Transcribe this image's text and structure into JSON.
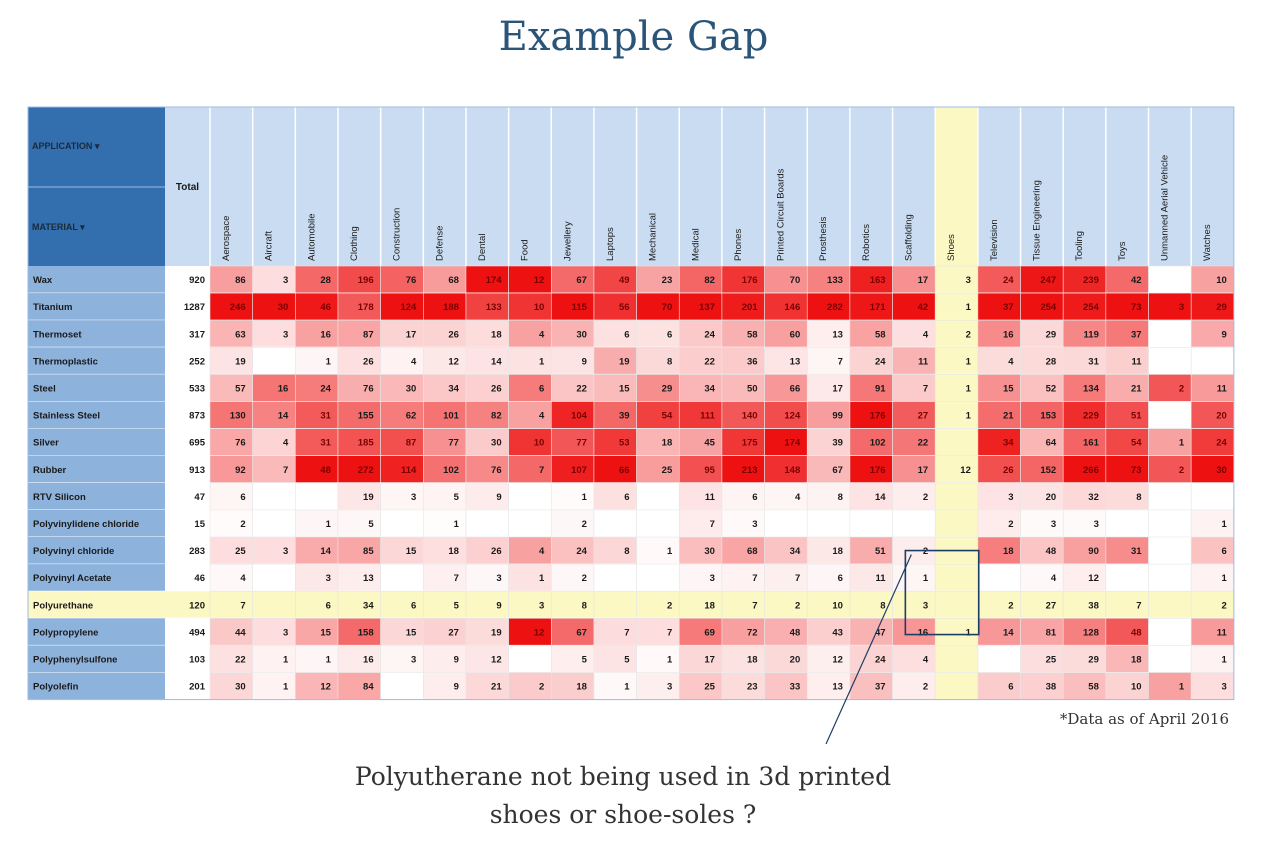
{
  "slide": {
    "title": "Example Gap",
    "footnote": "*Data as of April 2016",
    "callout_line1": "Polyutherane not being used in 3d printed",
    "callout_line2": "shoes or shoe-soles ?"
  },
  "colors": {
    "title": "#2b5578",
    "header_bg": "#c9dcf1",
    "row_label_bg": "#8db2dc",
    "corner_bg": "#336fae",
    "highlight": "#fbf8c4",
    "heat_low": "#ffffff",
    "heat_high": "#ee1111"
  },
  "chart_data": {
    "type": "heatmap",
    "corner_labels": [
      "APPLICATION ▾",
      "MATERIAL ▾"
    ],
    "total_label": "Total",
    "columns": [
      "Aerospace",
      "Aircraft",
      "Automobile",
      "Clothing",
      "Construction",
      "Defense",
      "Dental",
      "Food",
      "Jewellery",
      "Laptops",
      "Mechanical",
      "Medical",
      "Phones",
      "Printed Circuit Boards",
      "Prosthesis",
      "Robotics",
      "Scaffolding",
      "Shoes",
      "Television",
      "Tissue Engineering",
      "Tooling",
      "Toys",
      "Unmanned Aerial Vehicle",
      "Watches"
    ],
    "rows": [
      {
        "material": "Wax",
        "total": 920,
        "values": [
          86,
          3,
          28,
          196,
          76,
          68,
          174,
          12,
          67,
          49,
          23,
          82,
          176,
          70,
          133,
          163,
          17,
          3,
          24,
          247,
          239,
          42,
          null,
          10
        ]
      },
      {
        "material": "Titanium",
        "total": 1287,
        "values": [
          246,
          30,
          46,
          178,
          124,
          188,
          133,
          10,
          115,
          56,
          70,
          137,
          201,
          146,
          282,
          171,
          42,
          1,
          37,
          254,
          254,
          73,
          3,
          29
        ]
      },
      {
        "material": "Thermoset",
        "total": 317,
        "values": [
          63,
          3,
          16,
          87,
          17,
          26,
          18,
          4,
          30,
          6,
          6,
          24,
          58,
          60,
          13,
          58,
          4,
          2,
          16,
          29,
          119,
          37,
          null,
          9
        ]
      },
      {
        "material": "Thermoplastic",
        "total": 252,
        "values": [
          19,
          null,
          1,
          26,
          4,
          12,
          14,
          1,
          9,
          19,
          8,
          22,
          36,
          13,
          7,
          24,
          11,
          1,
          4,
          28,
          31,
          11,
          null,
          null
        ]
      },
      {
        "material": "Steel",
        "total": 533,
        "values": [
          57,
          16,
          24,
          76,
          30,
          34,
          26,
          6,
          22,
          15,
          29,
          34,
          50,
          66,
          17,
          91,
          7,
          1,
          15,
          52,
          134,
          21,
          2,
          11
        ]
      },
      {
        "material": "Stainless Steel",
        "total": 873,
        "values": [
          130,
          14,
          31,
          155,
          62,
          101,
          82,
          4,
          104,
          39,
          54,
          111,
          140,
          124,
          99,
          176,
          27,
          1,
          21,
          153,
          229,
          51,
          null,
          20
        ]
      },
      {
        "material": "Silver",
        "total": 695,
        "values": [
          76,
          4,
          31,
          185,
          87,
          77,
          30,
          10,
          77,
          53,
          18,
          45,
          175,
          174,
          39,
          102,
          22,
          null,
          34,
          64,
          161,
          54,
          1,
          24
        ]
      },
      {
        "material": "Rubber",
        "total": 913,
        "values": [
          92,
          7,
          48,
          272,
          114,
          102,
          76,
          7,
          107,
          66,
          25,
          95,
          213,
          148,
          67,
          176,
          17,
          12,
          26,
          152,
          266,
          73,
          2,
          30
        ]
      },
      {
        "material": "RTV Silicon",
        "total": 47,
        "values": [
          6,
          null,
          null,
          19,
          3,
          5,
          9,
          null,
          1,
          6,
          null,
          11,
          6,
          4,
          8,
          14,
          2,
          null,
          3,
          20,
          32,
          8,
          null,
          null
        ]
      },
      {
        "material": "Polyvinylidene chloride",
        "total": 15,
        "values": [
          2,
          null,
          1,
          5,
          null,
          1,
          null,
          null,
          2,
          null,
          null,
          7,
          3,
          null,
          null,
          null,
          null,
          null,
          2,
          3,
          3,
          null,
          null,
          1
        ]
      },
      {
        "material": "Polyvinyl chloride",
        "total": 283,
        "values": [
          25,
          3,
          14,
          85,
          15,
          18,
          26,
          4,
          24,
          8,
          1,
          30,
          68,
          34,
          18,
          51,
          2,
          null,
          18,
          48,
          90,
          31,
          null,
          6
        ]
      },
      {
        "material": "Polyvinyl Acetate",
        "total": 46,
        "values": [
          4,
          null,
          3,
          13,
          null,
          7,
          3,
          1,
          2,
          null,
          null,
          3,
          7,
          7,
          6,
          11,
          1,
          null,
          null,
          4,
          12,
          null,
          null,
          1
        ]
      },
      {
        "material": "Polyurethane",
        "total": 120,
        "values": [
          7,
          null,
          6,
          34,
          6,
          5,
          9,
          3,
          8,
          null,
          2,
          18,
          7,
          2,
          10,
          8,
          3,
          null,
          2,
          27,
          38,
          7,
          null,
          2
        ],
        "highlight": true
      },
      {
        "material": "Polypropylene",
        "total": 494,
        "values": [
          44,
          3,
          15,
          158,
          15,
          27,
          19,
          12,
          67,
          7,
          7,
          69,
          72,
          48,
          43,
          47,
          16,
          1,
          14,
          81,
          128,
          48,
          null,
          11
        ]
      },
      {
        "material": "Polyphenylsulfone",
        "total": 103,
        "values": [
          22,
          1,
          1,
          16,
          3,
          9,
          12,
          null,
          5,
          5,
          1,
          17,
          18,
          20,
          12,
          24,
          4,
          null,
          null,
          25,
          29,
          18,
          null,
          1
        ]
      },
      {
        "material": "Polyolefin",
        "total": 201,
        "values": [
          30,
          1,
          12,
          84,
          null,
          9,
          21,
          2,
          18,
          1,
          3,
          25,
          23,
          33,
          13,
          37,
          2,
          null,
          6,
          38,
          58,
          10,
          1,
          3
        ]
      }
    ],
    "highlight_column": "Shoes",
    "highlight_row": "Polyurethane",
    "color_scale": "per-column, white to red"
  }
}
